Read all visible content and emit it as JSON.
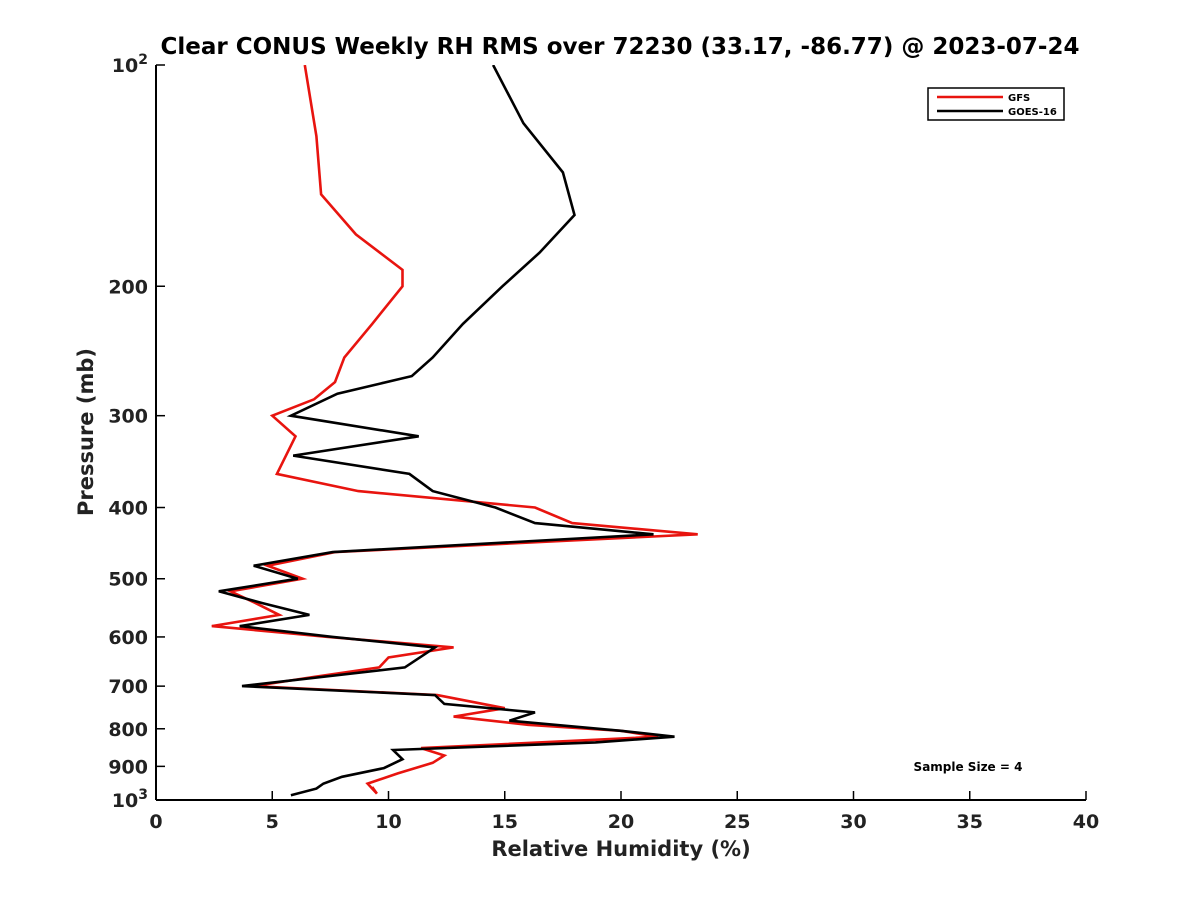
{
  "chart_data": {
    "type": "line",
    "title": "Clear CONUS Weekly RH RMS over 72230 (33.17, -86.77) @ 2023-07-24",
    "xlabel": "Relative Humidity (%)",
    "ylabel": "Pressure (mb)",
    "xlim": [
      0,
      40
    ],
    "ylim": [
      100,
      1000
    ],
    "yscale": "log",
    "ydir": "reverse",
    "grid": false,
    "legend_position": "top-right",
    "x_ticks": [
      0,
      5,
      10,
      15,
      20,
      25,
      30,
      35,
      40
    ],
    "x_tick_labels": [
      "0",
      "5",
      "10",
      "15",
      "20",
      "25",
      "30",
      "35",
      "40"
    ],
    "y_ticks": [
      {
        "value": 100,
        "label": "10",
        "sup": "2"
      },
      {
        "value": 200,
        "label": "200",
        "sup": ""
      },
      {
        "value": 300,
        "label": "300",
        "sup": ""
      },
      {
        "value": 400,
        "label": "400",
        "sup": ""
      },
      {
        "value": 500,
        "label": "500",
        "sup": ""
      },
      {
        "value": 600,
        "label": "600",
        "sup": ""
      },
      {
        "value": 700,
        "label": "700",
        "sup": ""
      },
      {
        "value": 800,
        "label": "800",
        "sup": ""
      },
      {
        "value": 900,
        "label": "900",
        "sup": ""
      },
      {
        "value": 1000,
        "label": "10",
        "sup": "3"
      }
    ],
    "series": [
      {
        "name": "GFS",
        "color": "#e8140f",
        "points": [
          [
            6.4,
            100
          ],
          [
            6.9,
            125
          ],
          [
            7.1,
            150
          ],
          [
            8.6,
            170
          ],
          [
            10.6,
            190
          ],
          [
            10.6,
            200
          ],
          [
            9.3,
            225
          ],
          [
            8.1,
            250
          ],
          [
            7.7,
            270
          ],
          [
            6.8,
            285
          ],
          [
            5.0,
            300
          ],
          [
            6.0,
            320
          ],
          [
            5.2,
            360
          ],
          [
            8.7,
            380
          ],
          [
            16.3,
            400
          ],
          [
            17.9,
            420
          ],
          [
            23.3,
            435
          ],
          [
            7.7,
            460
          ],
          [
            4.8,
            480
          ],
          [
            6.3,
            500
          ],
          [
            3.2,
            520
          ],
          [
            4.3,
            540
          ],
          [
            5.3,
            560
          ],
          [
            2.4,
            580
          ],
          [
            7.4,
            600
          ],
          [
            12.8,
            620
          ],
          [
            10.0,
            640
          ],
          [
            9.6,
            660
          ],
          [
            6.8,
            680
          ],
          [
            4.2,
            700
          ],
          [
            12.1,
            720
          ],
          [
            15.0,
            750
          ],
          [
            12.8,
            770
          ],
          [
            16.0,
            790
          ],
          [
            20.0,
            805
          ],
          [
            21.6,
            820
          ],
          [
            11.4,
            850
          ],
          [
            12.4,
            870
          ],
          [
            11.9,
            890
          ],
          [
            10.4,
            920
          ],
          [
            9.1,
            950
          ],
          [
            9.5,
            980
          ],
          [
            9.3,
            960
          ]
        ]
      },
      {
        "name": "GOES-16",
        "color": "#000000",
        "points": [
          [
            14.5,
            100
          ],
          [
            15.8,
            120
          ],
          [
            17.5,
            140
          ],
          [
            18.0,
            160
          ],
          [
            16.5,
            180
          ],
          [
            14.9,
            200
          ],
          [
            13.2,
            225
          ],
          [
            11.9,
            250
          ],
          [
            11.0,
            265
          ],
          [
            7.8,
            280
          ],
          [
            5.8,
            300
          ],
          [
            11.3,
            320
          ],
          [
            5.9,
            340
          ],
          [
            10.9,
            360
          ],
          [
            11.9,
            380
          ],
          [
            14.6,
            400
          ],
          [
            16.3,
            420
          ],
          [
            21.4,
            435
          ],
          [
            7.6,
            460
          ],
          [
            4.2,
            480
          ],
          [
            6.1,
            500
          ],
          [
            2.7,
            520
          ],
          [
            4.6,
            540
          ],
          [
            6.6,
            560
          ],
          [
            3.6,
            580
          ],
          [
            7.6,
            600
          ],
          [
            12.0,
            620
          ],
          [
            10.7,
            660
          ],
          [
            3.7,
            700
          ],
          [
            12.0,
            720
          ],
          [
            12.4,
            740
          ],
          [
            16.3,
            760
          ],
          [
            15.2,
            780
          ],
          [
            20.0,
            805
          ],
          [
            22.3,
            820
          ],
          [
            18.9,
            835
          ],
          [
            10.2,
            855
          ],
          [
            10.6,
            880
          ],
          [
            9.8,
            905
          ],
          [
            8.0,
            930
          ],
          [
            7.2,
            950
          ],
          [
            6.9,
            965
          ],
          [
            5.8,
            985
          ]
        ]
      }
    ],
    "annotation": "Sample Size = 4"
  }
}
